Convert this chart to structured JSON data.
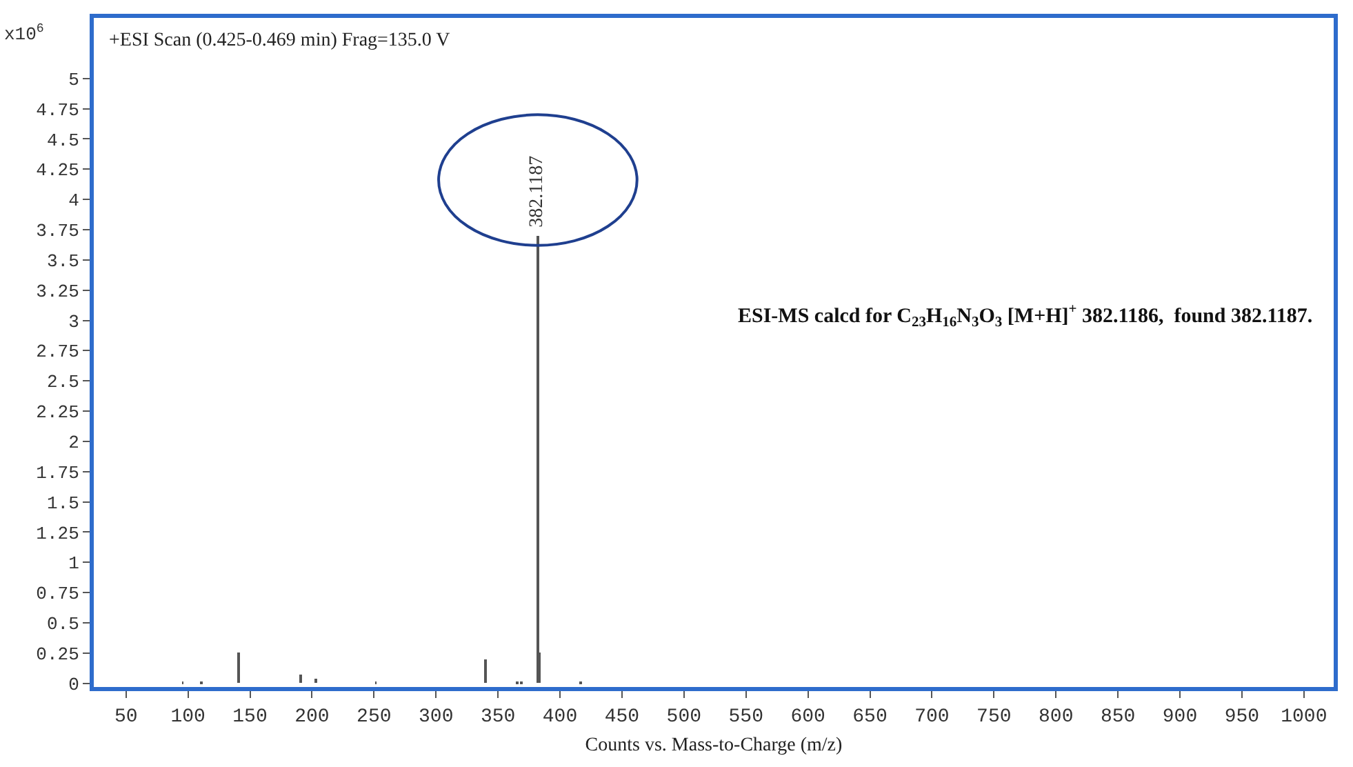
{
  "chart_data": {
    "type": "bar",
    "title": "+ESI Scan (0.425-0.469 min) Frag=135.0 V",
    "xlabel": "Counts vs. Mass-to-Charge (m/z)",
    "ylabel": "x10$^{6}$",
    "x": [
      95.8,
      110.6,
      140.6,
      191.3,
      202.6,
      251.5,
      340.3,
      365.5,
      368.5,
      382.1187,
      383.1,
      416.7
    ],
    "values": [
      0.01,
      0.01,
      0.26,
      0.07,
      0.04,
      0.01,
      0.2,
      0.01,
      0.01,
      3.7,
      0.26,
      0.01
    ],
    "color": "#555555",
    "annotations": [
      {
        "text": "382.1187",
        "x": 382.1187,
        "y": 3.7
      },
      "ESI-MS calcd for C$_{23}$H$_{16}$N$_{3}$O$_{3}$ [M+H]$^{+}$ 382.1186,  found 382.1187."
    ],
    "xlim": [
      24,
      1024
    ],
    "xticks": [
      50,
      100,
      150,
      200,
      250,
      300,
      350,
      400,
      450,
      500,
      550,
      600,
      650,
      700,
      750,
      800,
      850,
      900,
      950,
      1000
    ],
    "ylim": [
      -0.03,
      5.5
    ],
    "yticks": [
      0,
      0.25,
      0.5,
      0.75,
      1,
      1.25,
      1.5,
      1.75,
      2,
      2.25,
      2.5,
      2.75,
      3,
      3.25,
      3.5,
      3.75,
      4,
      4.25,
      4.5,
      4.75,
      5
    ]
  }
}
